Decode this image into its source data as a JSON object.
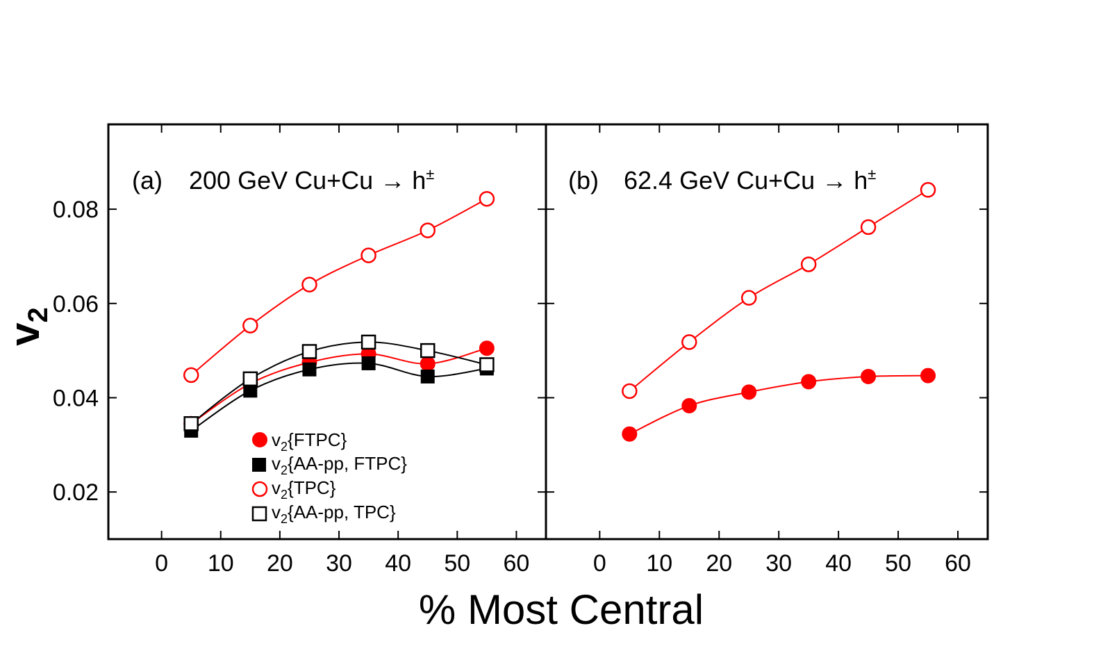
{
  "figure": {
    "xlabel": "% Most Central",
    "ylabel_main": "v",
    "ylabel_sub": "2"
  },
  "chart_data": [
    {
      "type": "line",
      "panel_label": "(a)",
      "title": "200 GeV Cu+Cu",
      "title_arrow": "→",
      "title_particle": "h",
      "title_particle_sup": "±",
      "xlim": [
        -9,
        65
      ],
      "ylim": [
        0.01,
        0.098
      ],
      "xticks": [
        0,
        10,
        20,
        30,
        40,
        50,
        60
      ],
      "yticks": [
        0.02,
        0.04,
        0.06,
        0.08
      ],
      "ytick_labels": [
        "0.02",
        "0.04",
        "0.06",
        "0.08"
      ],
      "grid": false,
      "legend_position": "bottom-center",
      "series": [
        {
          "name": "v2{FTPC}",
          "legend_main": "v",
          "legend_sub": "2",
          "legend_rest": "{FTPC}",
          "marker": "circle",
          "filled": true,
          "color": "#ff0000",
          "x": [
            5,
            15,
            25,
            35,
            45,
            55
          ],
          "y": [
            0.0345,
            0.043,
            0.0475,
            0.0493,
            0.0472,
            0.0505
          ]
        },
        {
          "name": "v2{AA-pp, FTPC}",
          "legend_main": "v",
          "legend_sub": "2",
          "legend_rest": "{AA-pp, FTPC}",
          "marker": "square",
          "filled": true,
          "color": "#000000",
          "x": [
            5,
            15,
            25,
            35,
            45,
            55
          ],
          "y": [
            0.033,
            0.0415,
            0.046,
            0.0473,
            0.0445,
            0.0462
          ]
        },
        {
          "name": "v2{TPC}",
          "legend_main": "v",
          "legend_sub": "2",
          "legend_rest": "{TPC}",
          "marker": "circle",
          "filled": false,
          "color": "#ff0000",
          "x": [
            5,
            15,
            25,
            35,
            45,
            55
          ],
          "y": [
            0.0448,
            0.0553,
            0.064,
            0.0702,
            0.0755,
            0.0822
          ]
        },
        {
          "name": "v2{AA-pp, TPC}",
          "legend_main": "v",
          "legend_sub": "2",
          "legend_rest": "{AA-pp, TPC}",
          "marker": "square",
          "filled": false,
          "color": "#000000",
          "x": [
            5,
            15,
            25,
            35,
            45,
            55
          ],
          "y": [
            0.0345,
            0.044,
            0.0498,
            0.0518,
            0.05,
            0.047
          ]
        }
      ]
    },
    {
      "type": "line",
      "panel_label": "(b)",
      "title": "62.4 GeV Cu+Cu",
      "title_arrow": "→",
      "title_particle": "h",
      "title_particle_sup": "±",
      "xlim": [
        -9,
        65
      ],
      "ylim": [
        0.01,
        0.098
      ],
      "xticks": [
        0,
        10,
        20,
        30,
        40,
        50,
        60
      ],
      "yticks": [
        0.02,
        0.04,
        0.06,
        0.08
      ],
      "grid": false,
      "series": [
        {
          "name": "v2{FTPC}",
          "marker": "circle",
          "filled": true,
          "color": "#ff0000",
          "x": [
            5,
            15,
            25,
            35,
            45,
            55
          ],
          "y": [
            0.0323,
            0.0383,
            0.0412,
            0.0434,
            0.0445,
            0.0447
          ],
          "yerr": [
            0,
            0,
            0,
            0,
            0,
            0.0012
          ]
        },
        {
          "name": "v2{TPC}",
          "marker": "circle",
          "filled": false,
          "color": "#ff0000",
          "x": [
            5,
            15,
            25,
            35,
            45,
            55
          ],
          "y": [
            0.0414,
            0.0518,
            0.0612,
            0.0683,
            0.0762,
            0.0841
          ]
        }
      ]
    }
  ]
}
